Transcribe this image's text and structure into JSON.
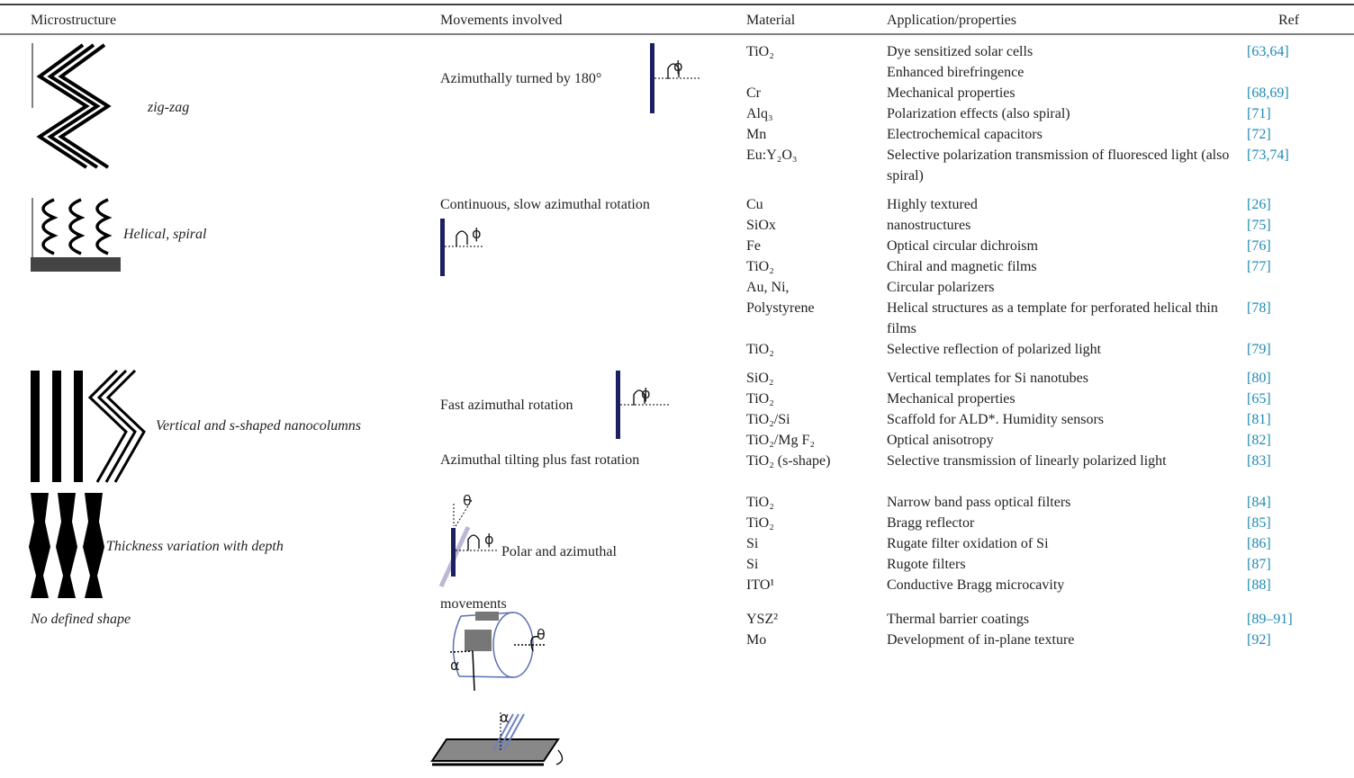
{
  "header": [
    "Microstructure",
    "Movements involved",
    "Material",
    "Application/properties",
    "Ref"
  ],
  "groups": [
    {
      "microstructure": "zig-zag",
      "movements": [
        "Azimuthally turned by 180°"
      ],
      "symbols": [
        "ϕ"
      ],
      "rows": [
        [
          "TiO₂",
          "Dye sensitized solar cells",
          "[63,64]"
        ],
        [
          null,
          "Enhanced birefringence",
          null
        ],
        [
          "Cr",
          "Mechanical properties",
          "[68,69]"
        ],
        [
          "Alq₃",
          "Polarization effects (also spiral)",
          "[71]"
        ],
        [
          "Mn",
          "Electrochemical capacitors",
          "[72]"
        ],
        [
          "Eu:Y₂O₃",
          "Selective polarization transmission of fluoresced light (also spiral)",
          "[73,74]"
        ]
      ]
    },
    {
      "microstructure": "Helical, spiral",
      "movements": [
        "Continuous, slow azimuthal rotation"
      ],
      "symbols": [
        "ϕ"
      ],
      "rows": [
        [
          "Cu",
          "Highly textured",
          "[26]"
        ],
        [
          "SiOx",
          "nanostructures",
          "[75]"
        ],
        [
          "Fe",
          "Optical circular dichroism",
          "[76]"
        ],
        [
          "TiO₂",
          "Chiral and magnetic films",
          "[77]"
        ],
        [
          "Au, Ni,",
          "Circular polarizers",
          null
        ],
        [
          "Polystyrene",
          "Helical structures as a template for perforated helical thin films",
          "[78]"
        ],
        [
          "TiO₂",
          "Selective reflection of polarized light",
          "[79]"
        ]
      ]
    },
    {
      "microstructure": "Vertical and s-shaped nanocolumns",
      "movements": [
        "Fast azimuthal rotation",
        "Azimuthal tilting plus fast rotation"
      ],
      "symbols": [
        "ϕ"
      ],
      "rows": [
        [
          "SiO₂",
          "Vertical templates for Si nanotubes",
          "[80]"
        ],
        [
          "TiO₂",
          "Mechanical properties",
          "[65]"
        ],
        [
          "TiO₂/Si",
          "Scaffold for ALD*. Humidity sensors",
          "[81]"
        ],
        [
          "TiO₂/Mg F₂",
          "Optical anisotropy",
          "[82]"
        ],
        [
          "TiO₂ (s-shape)",
          "Selective transmission of linearly polarized light",
          "[83]"
        ]
      ]
    },
    {
      "microstructure": "Thickness variation with depth",
      "movements": [
        "Polar and azimuthal movements"
      ],
      "symbols": [
        "θ",
        "ϕ"
      ],
      "rows": [
        [
          "TiO₂",
          "Narrow band pass optical filters",
          "[84]"
        ],
        [
          "TiO₂",
          "Bragg reflector",
          "[85]"
        ],
        [
          "Si",
          "Rugate filter oxidation of Si",
          "[86]"
        ],
        [
          "Si",
          "Rugote filters",
          "[87]"
        ],
        [
          "ITO¹",
          "Conductive Bragg microcavity",
          "[88]"
        ]
      ]
    },
    {
      "microstructure": "No defined shape",
      "movements": [],
      "symbols": [
        "θ",
        "α",
        "α"
      ],
      "rows": [
        [
          "YSZ²",
          "Thermal barrier coatings",
          "[89–91]"
        ],
        [
          "Mo",
          "Development of in-plane texture",
          "[92]"
        ]
      ]
    }
  ]
}
